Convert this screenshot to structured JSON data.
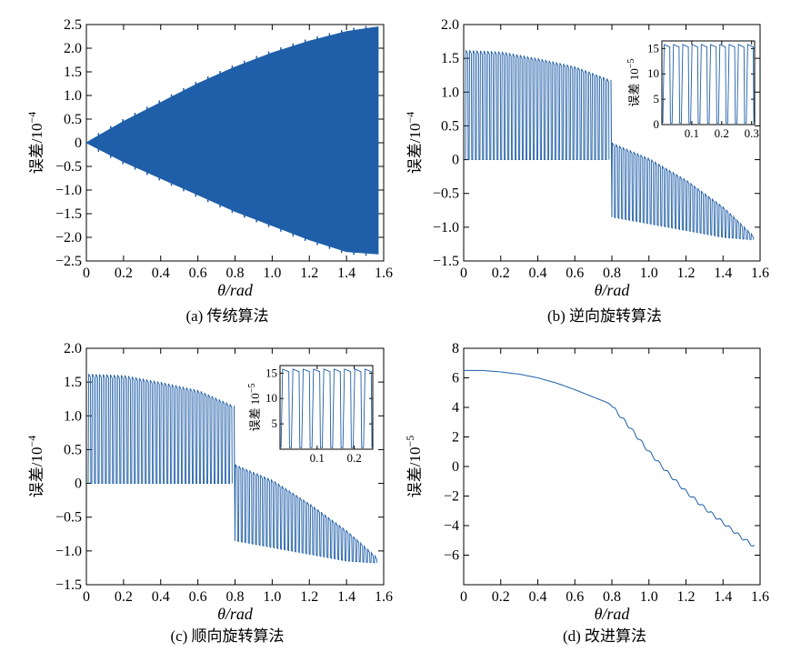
{
  "colors": {
    "series": "#1f5ea8",
    "axis": "#000000",
    "background": "#ffffff"
  },
  "chart_data": [
    {
      "id": "a",
      "type": "line",
      "caption": "(a) 传统算法",
      "xlabel": "θ/rad",
      "ylabel_main": "误差/10",
      "ylabel_exp": "−4",
      "xlim": [
        0,
        1.6
      ],
      "ylim": [
        -2.5,
        2.5
      ],
      "xticks": [
        0,
        0.2,
        0.4,
        0.6,
        0.8,
        1.0,
        1.2,
        1.4,
        1.6
      ],
      "xtick_labels": [
        "0",
        "0.2",
        "0.4",
        "0.6",
        "0.8",
        "1.0",
        "1.2",
        "1.4",
        "1.6"
      ],
      "yticks": [
        -2.5,
        -2.0,
        -1.5,
        -1.0,
        -0.5,
        0,
        0.5,
        1.0,
        1.5,
        2.0,
        2.5
      ],
      "ytick_labels": [
        "−2.5",
        "−2.0",
        "−1.5",
        "−1.0",
        "−0.5",
        "0",
        "0.5",
        "1.0",
        "1.5",
        "2.0",
        "2.5"
      ],
      "envelope": {
        "x": [
          0,
          0.2,
          0.4,
          0.6,
          0.8,
          1.0,
          1.2,
          1.4,
          1.57
        ],
        "upper": [
          0,
          0.45,
          0.85,
          1.25,
          1.6,
          1.9,
          2.15,
          2.35,
          2.45
        ],
        "lower": [
          0,
          -0.4,
          -0.75,
          -1.1,
          -1.45,
          -1.75,
          -2.05,
          -2.3,
          -2.35
        ]
      }
    },
    {
      "id": "b",
      "type": "line",
      "caption": "(b) 逆向旋转算法",
      "xlabel": "θ/rad",
      "ylabel_main": "误差/10",
      "ylabel_exp": "−4",
      "xlim": [
        0,
        1.6
      ],
      "ylim": [
        -1.5,
        2.0
      ],
      "xticks": [
        0,
        0.2,
        0.4,
        0.6,
        0.8,
        1.0,
        1.2,
        1.4,
        1.6
      ],
      "xtick_labels": [
        "0",
        "0.2",
        "0.4",
        "0.6",
        "0.8",
        "1.0",
        "1.2",
        "1.4",
        "1.6"
      ],
      "yticks": [
        -1.5,
        -1.0,
        -0.5,
        0,
        0.5,
        1.0,
        1.5,
        2.0
      ],
      "ytick_labels": [
        "−1.5",
        "−1.0",
        "−0.5",
        "0",
        "0.5",
        "1.0",
        "1.5",
        "2.0"
      ],
      "segments": [
        {
          "x": [
            0.01,
            0.2,
            0.4,
            0.6,
            0.79
          ],
          "upper": [
            1.62,
            1.6,
            1.5,
            1.38,
            1.18
          ],
          "lower": [
            0,
            0,
            0,
            0,
            0
          ]
        },
        {
          "x": [
            0.8,
            1.0,
            1.2,
            1.4,
            1.57
          ],
          "upper": [
            0.25,
            0.02,
            -0.3,
            -0.7,
            -1.15
          ],
          "lower": [
            -0.85,
            -0.95,
            -1.05,
            -1.15,
            -1.19
          ]
        }
      ],
      "inset": {
        "ylabel_main": "误差 10",
        "ylabel_exp": "−5",
        "xlim": [
          0,
          0.31
        ],
        "ylim": [
          0,
          16.5
        ],
        "xticks": [
          0.1,
          0.2,
          0.3
        ],
        "xtick_labels": [
          "0.1",
          "0.2",
          "0.3"
        ],
        "yticks": [
          0,
          5,
          10,
          15
        ],
        "ytick_labels": [
          "0",
          "5",
          "10",
          "15"
        ]
      }
    },
    {
      "id": "c",
      "type": "line",
      "caption": "(c) 顺向旋转算法",
      "xlabel": "θ/rad",
      "ylabel_main": "误差/10",
      "ylabel_exp": "−4",
      "xlim": [
        0,
        1.6
      ],
      "ylim": [
        -1.5,
        2.0
      ],
      "xticks": [
        0,
        0.2,
        0.4,
        0.6,
        0.8,
        1.0,
        1.2,
        1.4,
        1.6
      ],
      "xtick_labels": [
        "0",
        "0.2",
        "0.4",
        "0.6",
        "0.8",
        "1.0",
        "1.2",
        "1.4",
        "1.6"
      ],
      "yticks": [
        -1.5,
        -1.0,
        -0.5,
        0,
        0.5,
        1.0,
        1.5,
        2.0
      ],
      "ytick_labels": [
        "−1.5",
        "−1.0",
        "−0.5",
        "0",
        "0.5",
        "1.0",
        "1.5",
        "2.0"
      ],
      "segments": [
        {
          "x": [
            0.01,
            0.2,
            0.4,
            0.6,
            0.79
          ],
          "upper": [
            1.62,
            1.6,
            1.5,
            1.38,
            1.15
          ],
          "lower": [
            0,
            0,
            0,
            0,
            0
          ]
        },
        {
          "x": [
            0.8,
            1.0,
            1.2,
            1.4,
            1.57
          ],
          "upper": [
            0.28,
            0.05,
            -0.3,
            -0.7,
            -1.12
          ],
          "lower": [
            -0.85,
            -0.95,
            -1.05,
            -1.15,
            -1.18
          ]
        }
      ],
      "inset": {
        "ylabel_main": "误差 10",
        "ylabel_exp": "−5",
        "xlim": [
          0,
          0.25
        ],
        "ylim": [
          0,
          16.5
        ],
        "xticks": [
          0.1,
          0.2
        ],
        "xtick_labels": [
          "0.1",
          "0.2"
        ],
        "yticks": [
          5,
          10,
          15
        ],
        "ytick_labels": [
          "5",
          "10",
          "15"
        ]
      }
    },
    {
      "id": "d",
      "type": "line",
      "caption": "(d) 改进算法",
      "xlabel": "θ/rad",
      "ylabel_main": "误差/10",
      "ylabel_exp": "−5",
      "xlim": [
        0,
        1.6
      ],
      "ylim": [
        -8,
        8
      ],
      "xticks": [
        0,
        0.2,
        0.4,
        0.6,
        0.8,
        1.0,
        1.2,
        1.4,
        1.6
      ],
      "xtick_labels": [
        "0",
        "0.2",
        "0.4",
        "0.6",
        "0.8",
        "1.0",
        "1.2",
        "1.4",
        "1.6"
      ],
      "yticks": [
        -8,
        -6,
        -4,
        -2,
        0,
        2,
        4,
        6,
        8
      ],
      "ytick_labels": [
        "",
        "−6",
        "−4",
        "−2",
        "0",
        "2",
        "4",
        "6",
        "8"
      ],
      "x": [
        0,
        0.1,
        0.2,
        0.3,
        0.4,
        0.5,
        0.6,
        0.7,
        0.78,
        0.8,
        0.9,
        1.0,
        1.1,
        1.2,
        1.3,
        1.4,
        1.5,
        1.57
      ],
      "y": [
        6.5,
        6.5,
        6.4,
        6.25,
        6.0,
        5.65,
        5.2,
        4.7,
        4.3,
        4.1,
        2.6,
        1.0,
        -0.4,
        -1.7,
        -2.8,
        -3.8,
        -4.8,
        -5.4
      ]
    }
  ]
}
